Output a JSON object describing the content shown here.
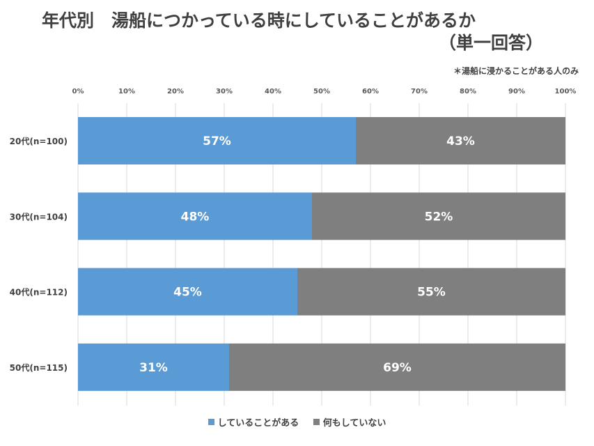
{
  "title_line1": "年代別　湯船につかっている時にしていることがあるか",
  "title_line2": "（単一回答）",
  "note": "＊湯船に浸かることがある人のみ",
  "chart_data": {
    "type": "bar",
    "orientation": "horizontal",
    "stacked": "percent",
    "categories": [
      "20代(n=100)",
      "30代(n=104)",
      "40代(n=112)",
      "50代(n=115)"
    ],
    "series": [
      {
        "name": "していることがある",
        "values": [
          57,
          48,
          45,
          31
        ],
        "labels": [
          "57%",
          "48%",
          "45%",
          "31%"
        ],
        "color": "#5b9bd5"
      },
      {
        "name": "何もしていない",
        "values": [
          43,
          52,
          55,
          69
        ],
        "labels": [
          "43%",
          "52%",
          "55%",
          "69%"
        ],
        "color": "#7f7f7f"
      }
    ],
    "xticks": [
      "0%",
      "10%",
      "20%",
      "30%",
      "40%",
      "50%",
      "60%",
      "70%",
      "80%",
      "90%",
      "100%"
    ],
    "xlim": [
      0,
      100
    ],
    "grid": true,
    "legend_position": "bottom",
    "label_color": "#ffffff"
  }
}
